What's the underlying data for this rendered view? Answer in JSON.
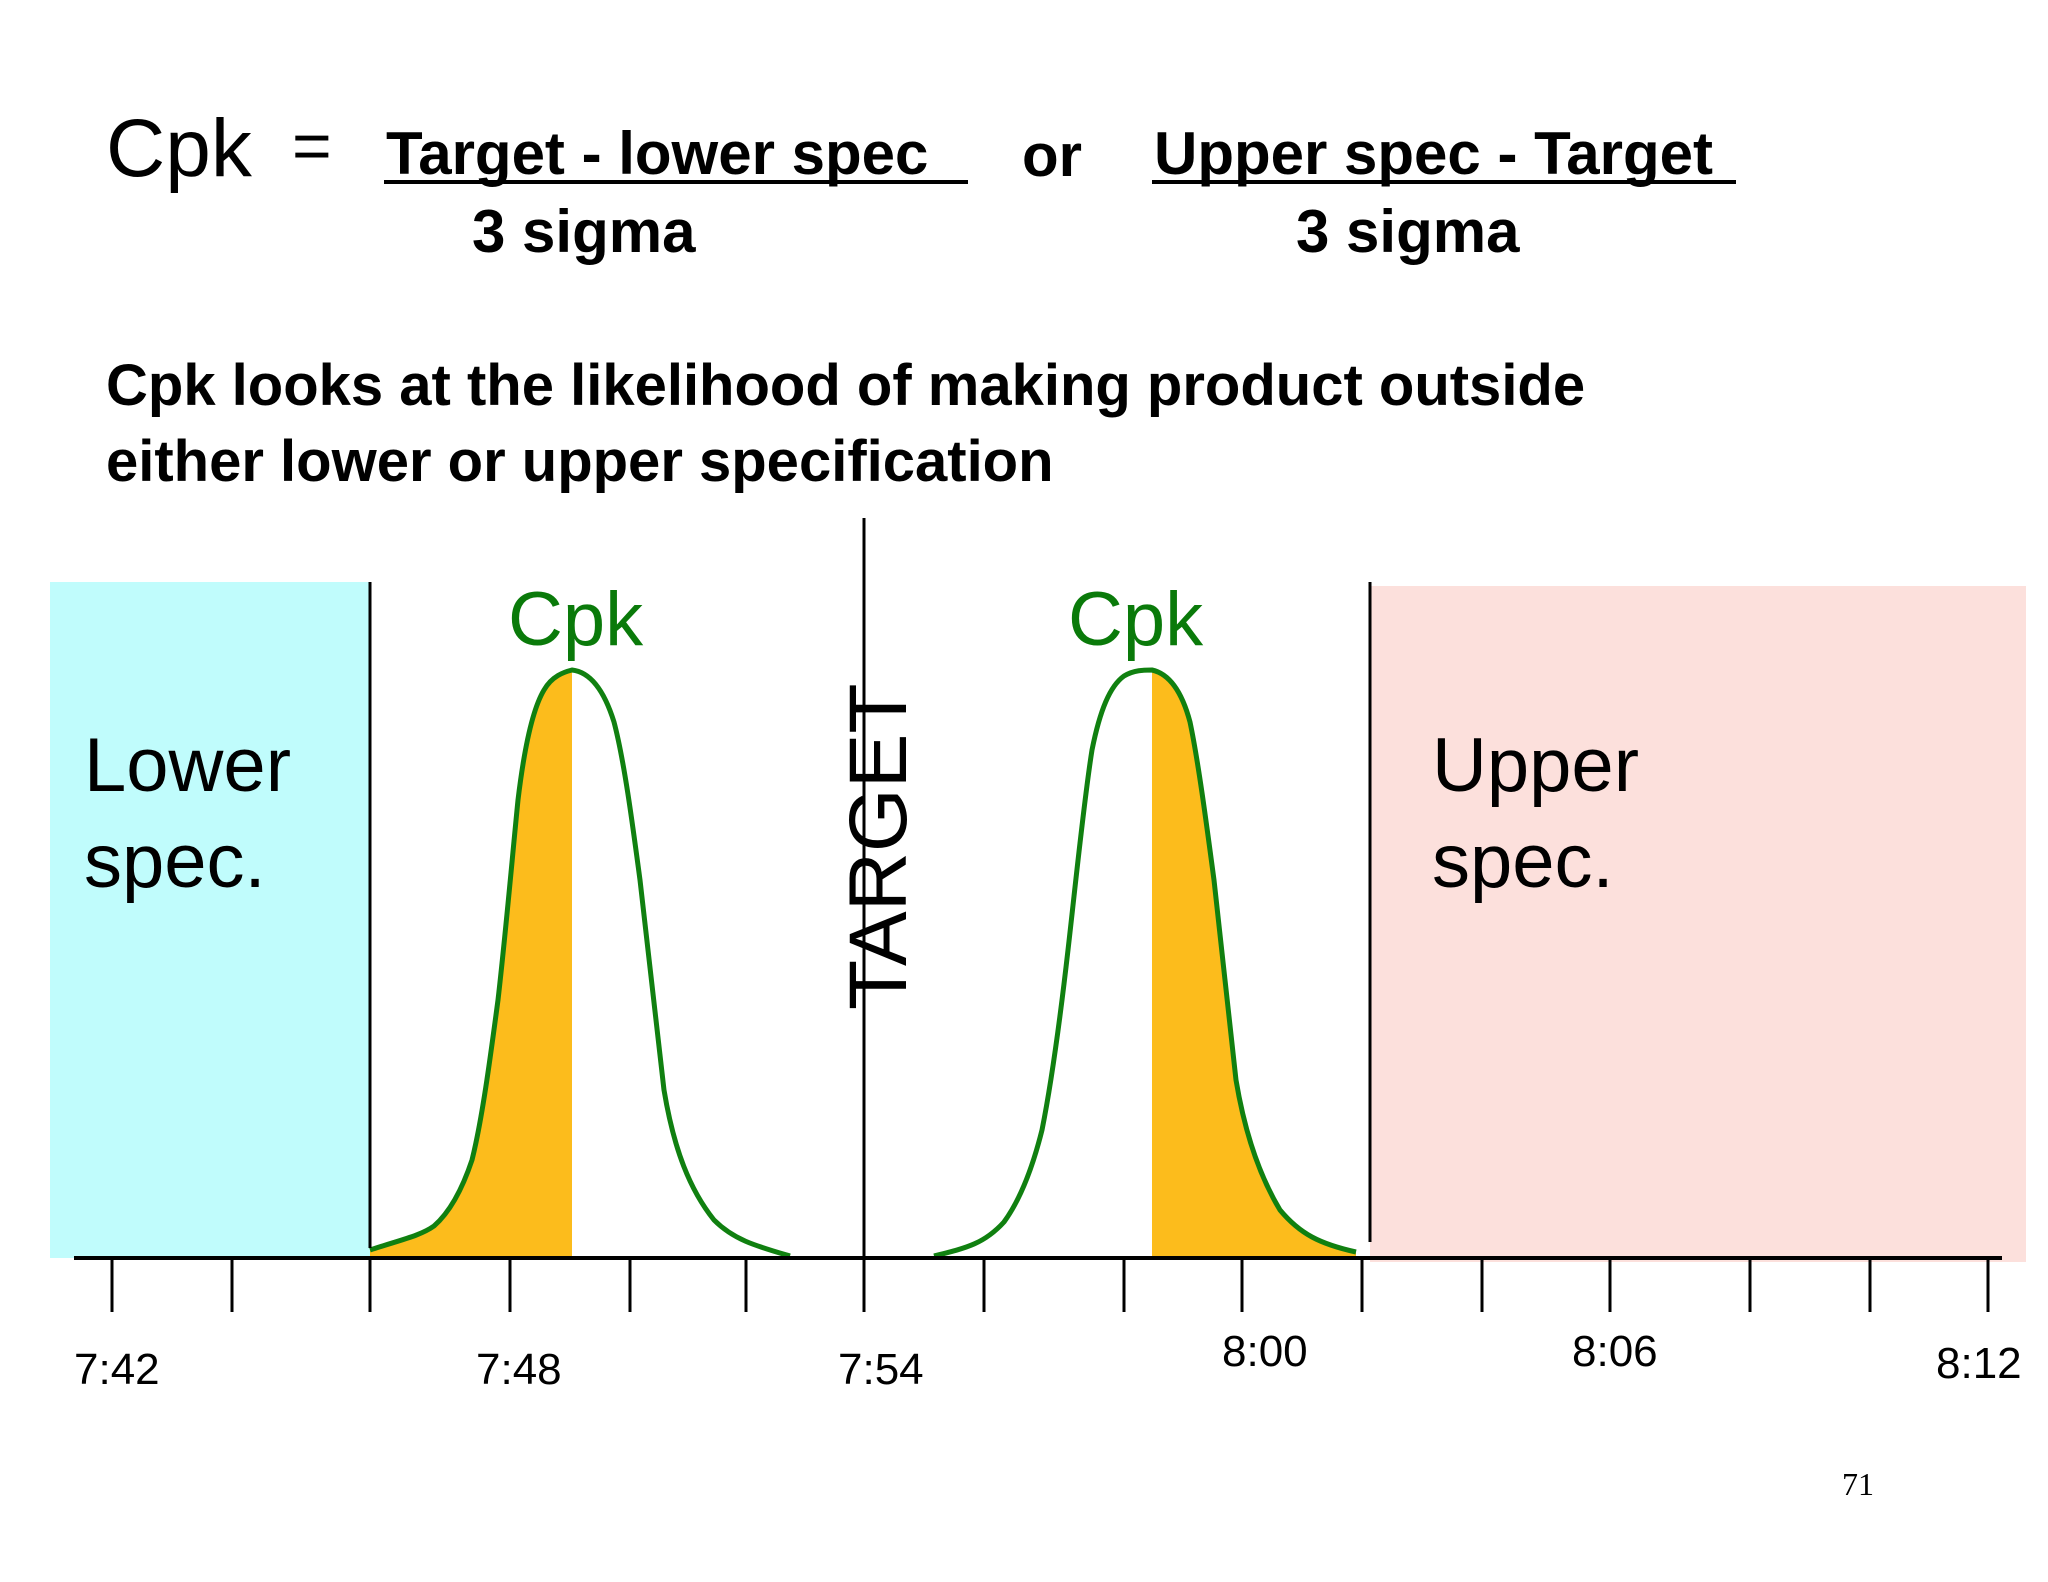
{
  "formula": {
    "lhs": "Cpk",
    "equals": "=",
    "left_numerator": "Target - lower spec",
    "left_denominator": "3 sigma",
    "or": "or",
    "right_numerator": "Upper spec - Target",
    "right_denominator": "3 sigma"
  },
  "description": {
    "line1": "Cpk looks at the likelihood of making product outside",
    "line2": "either lower or upper specification"
  },
  "diagram": {
    "lower_spec": {
      "line1": "Lower",
      "line2": "spec.",
      "color": "#c0fcfc"
    },
    "upper_spec": {
      "line1": "Upper",
      "line2": "spec.",
      "color": "#fce0dc"
    },
    "target_label": "TARGET",
    "curve_left_label": "Cpk",
    "curve_right_label": "Cpk",
    "curve_color": "#108010",
    "fill_color": "#fcbc1c",
    "label_color": "#0a7a0a",
    "axis_labels": [
      "7:42",
      "7:48",
      "7:54",
      "8:00",
      "8:06",
      "8:12"
    ]
  },
  "page_number": "71"
}
